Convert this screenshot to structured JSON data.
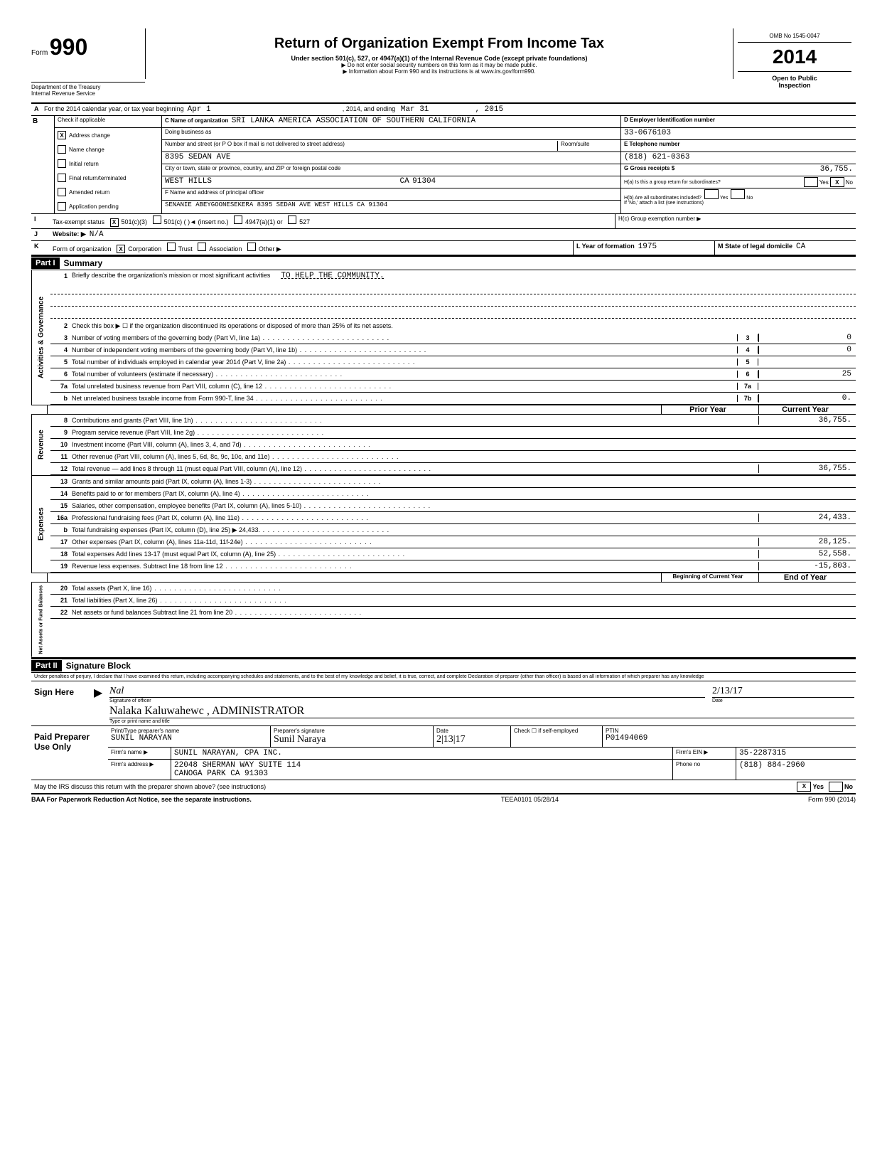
{
  "form": {
    "form_label_small": "Form",
    "form_number": "990",
    "dept": "Department of the Treasury",
    "irs": "Internal Revenue Service",
    "title": "Return of Organization Exempt From Income Tax",
    "subtitle": "Under section 501(c), 527, or 4947(a)(1) of the Internal Revenue Code (except private foundations)",
    "note1": "▶ Do not enter social security numbers on this form as it may be made public.",
    "note2": "▶ Information about Form 990 and its instructions is at www.irs.gov/form990.",
    "omb": "OMB No 1545-0047",
    "year": "2014",
    "open": "Open to Public",
    "inspection": "Inspection"
  },
  "line_a": {
    "prefix": "For the 2014 calendar year, or tax year beginning",
    "begin": "Apr 1",
    "mid": ", 2014, and ending",
    "end_month": "Mar 31",
    "end_year": ", 2015"
  },
  "section_b": {
    "label": "B",
    "check_header": "Check if applicable",
    "items": [
      {
        "label": "Address change",
        "checked": "X"
      },
      {
        "label": "Name change",
        "checked": ""
      },
      {
        "label": "Initial return",
        "checked": ""
      },
      {
        "label": "Final return/terminated",
        "checked": ""
      },
      {
        "label": "Amended return",
        "checked": ""
      },
      {
        "label": "Application pending",
        "checked": ""
      }
    ]
  },
  "section_c": {
    "c_label": "C  Name of organization",
    "org_name": "SRI LANKA AMERICA ASSOCIATION OF SOUTHERN CALIFORNIA",
    "dba_label": "Doing business as",
    "addr_label": "Number and street (or P O box if mail is not delivered to street address)",
    "room_label": "Room/suite",
    "street": "8395 SEDAN AVE",
    "city_label": "City or town, state or province, country, and ZIP or foreign postal code",
    "city": "WEST HILLS",
    "state": "CA",
    "zip": "91304",
    "f_label": "F  Name and address of principal officer",
    "officer": "SENANIE ABEYGOONESEKERA 8395 SEDAN AVE WEST HILLS   CA 91304"
  },
  "section_d": {
    "d_label": "D  Employer Identification number",
    "ein": "33-0676103",
    "e_label": "E  Telephone number",
    "phone": "(818) 621-0363",
    "g_label": "G  Gross receipts $",
    "gross": "36,755.",
    "ha_label": "H(a) Is this a group return for subordinates?",
    "ha_yes": "",
    "ha_no": "X",
    "hb_label": "H(b) Are all subordinates included?",
    "hb_note": "If 'No,' attach a list (see instructions)",
    "hc_label": "H(c) Group exemption number ▶"
  },
  "line_i": {
    "lbl": "I",
    "text": "Tax-exempt status",
    "c3_checked": "X",
    "c3": "501(c)(3)",
    "c": "501(c) (",
    "insert": ")◄  (insert no.)",
    "a1": "4947(a)(1) or",
    "s527": "527"
  },
  "line_j": {
    "lbl": "J",
    "text": "Website: ▶",
    "val": "N/A"
  },
  "line_k": {
    "lbl": "K",
    "text": "Form of organization",
    "corp_checked": "X",
    "corp": "Corporation",
    "trust": "Trust",
    "assoc": "Association",
    "other": "Other ▶",
    "l_label": "L Year of formation",
    "l_val": "1975",
    "m_label": "M State of legal domicile",
    "m_val": "CA"
  },
  "part1": {
    "header": "Part I",
    "title": "Summary",
    "q1_num": "1",
    "q1": "Briefly describe the organization's mission or most significant activities",
    "q1_ans": "TO HELP THE COMMUNITY.",
    "q2_num": "2",
    "q2": "Check this box ▶ ☐ if the organization discontinued its operations or disposed of more than 25% of its net assets.",
    "lines_gov": [
      {
        "n": "3",
        "d": "Number of voting members of the governing body (Part VI, line 1a)",
        "box": "3",
        "v": "0"
      },
      {
        "n": "4",
        "d": "Number of independent voting members of the governing body (Part VI, line 1b)",
        "box": "4",
        "v": "0"
      },
      {
        "n": "5",
        "d": "Total number of individuals employed in calendar year 2014 (Part V, line 2a)",
        "box": "5",
        "v": ""
      },
      {
        "n": "6",
        "d": "Total number of volunteers (estimate if necessary)",
        "box": "6",
        "v": "25"
      },
      {
        "n": "7a",
        "d": "Total unrelated business revenue from Part VIII, column (C), line 12",
        "box": "7a",
        "v": ""
      },
      {
        "n": "b",
        "d": "Net unrelated business taxable income from Form 990-T, line 34",
        "box": "7b",
        "v": "0."
      }
    ],
    "col_prior": "Prior Year",
    "col_current": "Current Year",
    "rev_label": "Revenue",
    "rev_lines": [
      {
        "n": "8",
        "d": "Contributions and grants (Part VIII, line 1h)",
        "p": "",
        "c": "36,755."
      },
      {
        "n": "9",
        "d": "Program service revenue (Part VIII, line 2g)",
        "p": "",
        "c": ""
      },
      {
        "n": "10",
        "d": "Investment income (Part VIII, column (A), lines 3, 4, and 7d)",
        "p": "",
        "c": ""
      },
      {
        "n": "11",
        "d": "Other revenue (Part VIII, column (A), lines 5, 6d, 8c, 9c, 10c, and 11e)",
        "p": "",
        "c": ""
      },
      {
        "n": "12",
        "d": "Total revenue — add lines 8 through 11 (must equal Part VIII, column (A), line 12)",
        "p": "",
        "c": "36,755."
      }
    ],
    "exp_label": "Expenses",
    "exp_lines": [
      {
        "n": "13",
        "d": "Grants and similar amounts paid (Part IX, column (A), lines 1-3)",
        "p": "",
        "c": ""
      },
      {
        "n": "14",
        "d": "Benefits paid to or for members (Part IX, column (A), line 4)",
        "p": "",
        "c": ""
      },
      {
        "n": "15",
        "d": "Salaries, other compensation, employee benefits (Part IX, column (A), lines 5-10)",
        "p": "",
        "c": ""
      },
      {
        "n": "16a",
        "d": "Professional fundraising fees (Part IX, column (A), line 11e)",
        "p": "",
        "c": "24,433."
      },
      {
        "n": "b",
        "d": "Total fundraising expenses (Part IX, column (D), line 25) ▶           24,433.",
        "p": "",
        "c": ""
      },
      {
        "n": "17",
        "d": "Other expenses (Part IX, column (A), lines 11a-11d, 11f-24e)",
        "p": "",
        "c": "28,125."
      },
      {
        "n": "18",
        "d": "Total expenses Add lines 13-17 (must equal Part IX, column (A), line 25)",
        "p": "",
        "c": "52,558."
      },
      {
        "n": "19",
        "d": "Revenue less expenses. Subtract line 18 from line 12",
        "p": "",
        "c": "-15,803."
      }
    ],
    "na_label": "Net Assets or\nFund Balances",
    "col_begin": "Beginning of Current Year",
    "col_end": "End of Year",
    "na_lines": [
      {
        "n": "20",
        "d": "Total assets (Part X, line 16)",
        "p": "",
        "c": ""
      },
      {
        "n": "21",
        "d": "Total liabilities (Part X, line 26)",
        "p": "",
        "c": ""
      },
      {
        "n": "22",
        "d": "Net assets or fund balances Subtract line 21 from line 20",
        "p": "",
        "c": ""
      }
    ]
  },
  "part2": {
    "header": "Part II",
    "title": "Signature Block",
    "perjury": "Under penalties of perjury, I declare that I have examined this return, including accompanying schedules and statements, and to the best of my knowledge and belief, it is true, correct, and complete  Declaration of preparer (other than officer) is based on all information of which preparer has any knowledge",
    "sign_here": "Sign Here",
    "sig_officer_lbl": "Signature of officer",
    "date_lbl": "Date",
    "sig_date": "2/13/17",
    "name_title": "Nalaka Kaluwahewc ,   ADMINISTRATOR",
    "name_title_lbl": "Type or print name and title",
    "paid": "Paid Preparer Use Only",
    "prep_name_lbl": "Print/Type preparer's name",
    "prep_name": "SUNIL NARAYAN",
    "prep_sig_lbl": "Preparer's signature",
    "prep_date": "2|13|17",
    "check_lbl": "Check ☐ if self-employed",
    "ptin_lbl": "PTIN",
    "ptin": "P01494069",
    "firm_name_lbl": "Firm's name ▶",
    "firm_name": "SUNIL NARAYAN, CPA INC.",
    "firm_ein_lbl": "Firm's EIN ▶",
    "firm_ein": "35-2287315",
    "firm_addr_lbl": "Firm's address ▶",
    "firm_addr": "22048 SHERMAN WAY SUITE 114",
    "firm_city": "CANOGA PARK              CA   91303",
    "phone_lbl": "Phone no",
    "firm_phone": "(818) 884-2960",
    "discuss": "May the IRS discuss this return with the preparer shown above? (see instructions)",
    "discuss_yes": "X",
    "baa": "BAA  For Paperwork Reduction Act Notice, see the separate instructions.",
    "teea": "TEEA0101  05/28/14",
    "formfoot": "Form 990 (2014)"
  }
}
